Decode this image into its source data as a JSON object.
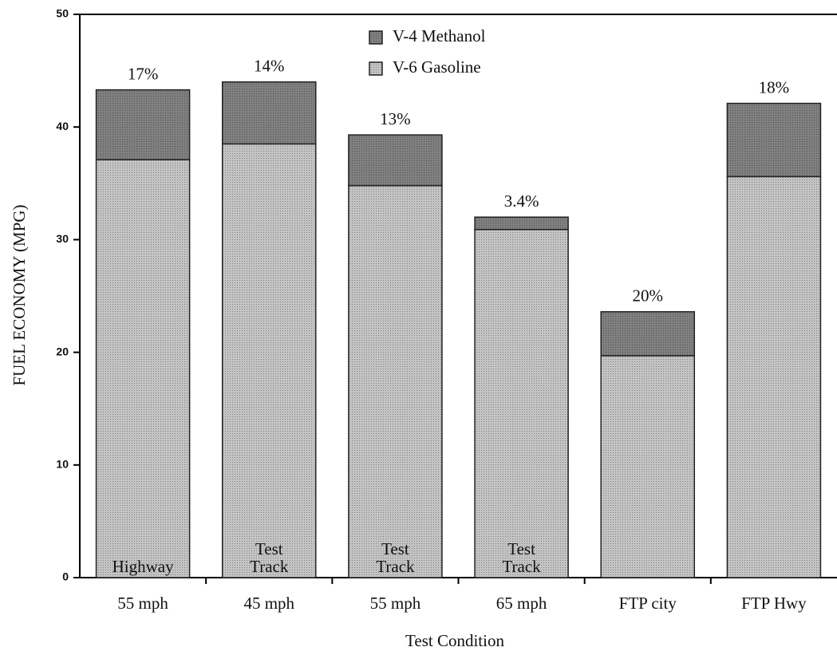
{
  "chart_data": {
    "type": "stacked_bar",
    "y_axis_label": "FUEL ECONOMY (MPG)",
    "x_axis_label": "Test Condition",
    "categories": [
      "55 mph",
      "45 mph",
      "55 mph",
      "65 mph",
      "FTP city",
      "FTP Hwy"
    ],
    "series": [
      {
        "name": "V-4 Methanol",
        "color": "#808080",
        "values": [
          6.2,
          5.5,
          4.5,
          1.1,
          3.9,
          6.5
        ]
      },
      {
        "name": "V-6 Gasoline",
        "color": "#c4c4c4",
        "values": [
          37.1,
          38.5,
          34.8,
          30.9,
          19.7,
          35.6
        ]
      }
    ],
    "bar_annotations": [
      "17%",
      "14%",
      "13%",
      "3.4%",
      "20%",
      "18%"
    ],
    "bar_labels": [
      [
        "Highway"
      ],
      [
        "Test",
        "Track"
      ],
      [
        "Test",
        "Track"
      ],
      [
        "Test",
        "Track"
      ],
      null,
      null
    ],
    "ylim": [
      0,
      50
    ],
    "yticks": [
      0,
      10,
      20,
      30,
      40,
      50
    ],
    "legend": "top-center"
  }
}
